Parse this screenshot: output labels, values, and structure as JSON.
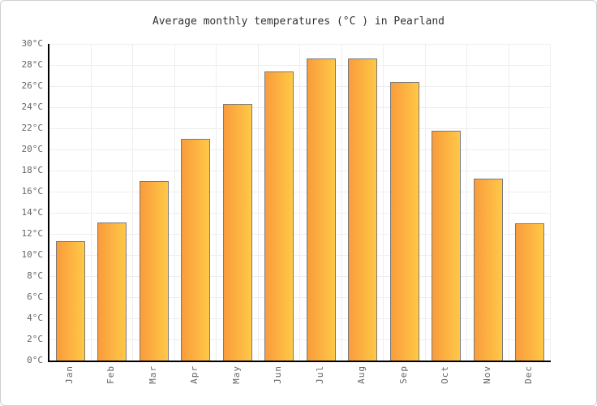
{
  "chart_data": {
    "type": "bar",
    "title": "Average monthly temperatures (°C ) in Pearland",
    "categories": [
      "Jan",
      "Feb",
      "Mar",
      "Apr",
      "May",
      "Jun",
      "Jul",
      "Aug",
      "Sep",
      "Oct",
      "Nov",
      "Dec"
    ],
    "values": [
      11.3,
      13.1,
      17.0,
      21.0,
      24.3,
      27.4,
      28.6,
      28.6,
      26.4,
      21.8,
      17.2,
      13.0
    ],
    "unit": "°C",
    "ylim": [
      0,
      30
    ],
    "ytick_step": 2,
    "ytick_labels": [
      "30°C",
      "28°C",
      "26°C",
      "24°C",
      "22°C",
      "20°C",
      "18°C",
      "16°C",
      "14°C",
      "12°C",
      "10°C",
      "8°C",
      "6°C",
      "4°C",
      "2°C",
      "0°C"
    ],
    "grid": true,
    "legend": null,
    "layout_hints": {
      "bar_orientation": "vertical",
      "x_labels_rotated": "90deg counterclockwise, read bottom-to-top",
      "axes_drawn": "left and bottom only, black"
    },
    "colors": {
      "bar_gradient_left": "#f99c3c",
      "bar_gradient_right": "#ffc847",
      "bar_border": "#7a7a7a",
      "gridline": "#eeeeee",
      "axis": "#000000",
      "tick_label": "#666666",
      "title": "#333333",
      "background": "#ffffff",
      "frame_border": "#cfcfcf"
    }
  }
}
